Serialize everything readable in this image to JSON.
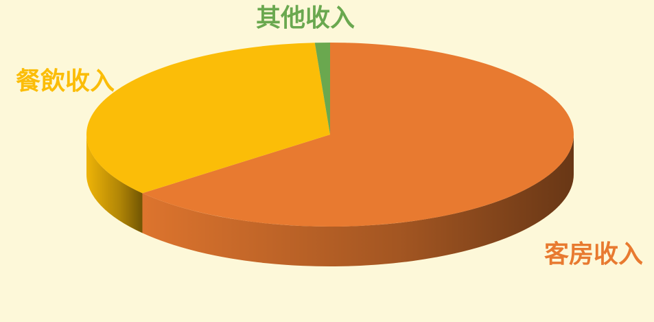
{
  "chart_data": {
    "type": "pie",
    "categories": [
      "客房收入",
      "餐飲收入",
      "其他收入"
    ],
    "values": [
      64,
      35,
      1
    ],
    "colors": [
      "#e87a30",
      "#fbbd08",
      "#6aa84f"
    ]
  }
}
